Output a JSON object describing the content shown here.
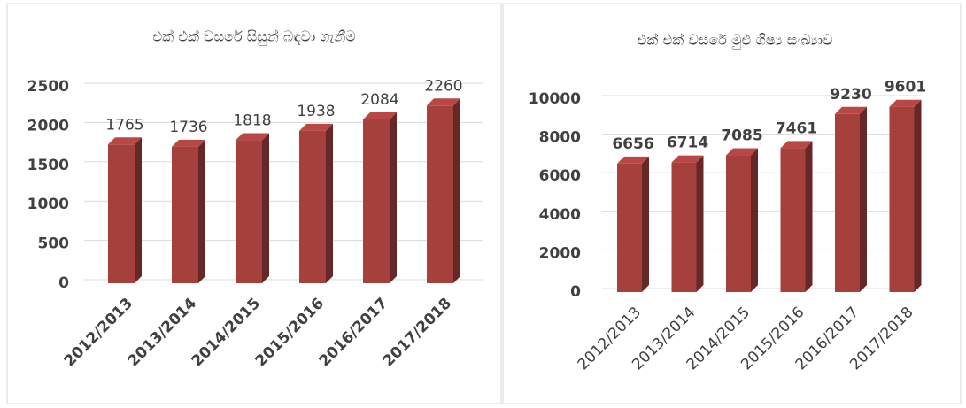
{
  "chart_data": [
    {
      "type": "bar",
      "title": "එක් එක් වසරේ සිසුන් බඳවා ගැනීම",
      "categories": [
        "2012/2013",
        "2013/2014",
        "2014/2015",
        "2015/2016",
        "2016/2017",
        "2017/2018"
      ],
      "values": [
        1765,
        1736,
        1818,
        1938,
        2084,
        2260
      ],
      "color": "#a5403d",
      "ylim": [
        0,
        2500
      ],
      "yticks": [
        0,
        500,
        1000,
        1500,
        2000,
        2500
      ],
      "grid": true
    },
    {
      "type": "bar",
      "title": "එක් එක් වසරේ මුළු ශිෂ්‍ය සංඛ්‍යාව",
      "categories": [
        "2012/2013",
        "2013/2014",
        "2014/2015",
        "2015/2016",
        "2016/2017",
        "2017/2018"
      ],
      "values": [
        6656,
        6714,
        7085,
        7461,
        9230,
        9601
      ],
      "color": "#a5403d",
      "ylim": [
        0,
        10000
      ],
      "yticks": [
        0,
        2000,
        4000,
        6000,
        8000,
        10000
      ],
      "grid": true
    }
  ]
}
